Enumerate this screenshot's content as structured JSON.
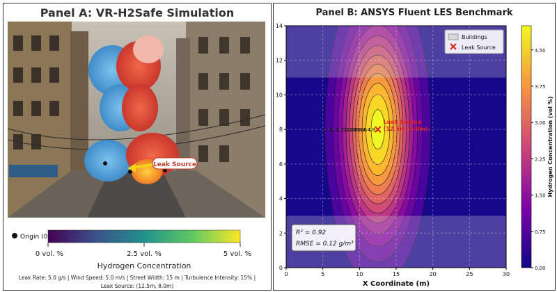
{
  "panel_a": {
    "title": "Panel A: VR-H2Safe Simulation",
    "leak_callout": "Leak Source",
    "legend_origin": "Origin (0",
    "colorbar": {
      "tick_labels": [
        "0 vol. %",
        "2.5 vol. %",
        "5 vol. %"
      ],
      "label": "Hydrogen Concentration",
      "colors": [
        "#440154",
        "#3b528b",
        "#21918c",
        "#5ec962",
        "#fde725"
      ]
    },
    "footer_line1": "Leak Rate: 5.0 g/s | Wind Speed: 5.0 m/s | Street Width: 15 m | Turbulence Intensity: 15% |",
    "footer_line2": "Leak Source: (12.5m, 8.0m)"
  },
  "chart_data": {
    "type": "heatmap",
    "title": "Panel B: ANSYS Fluent LES Benchmark",
    "xlabel": "X Coordinate (m)",
    "ylabel": "Y Coordinate (m)",
    "xlim": [
      0,
      30
    ],
    "ylim": [
      0,
      14
    ],
    "x_ticks": [
      "0",
      "5",
      "10",
      "15",
      "20",
      "25",
      "30"
    ],
    "y_ticks": [
      "0",
      "2",
      "4",
      "6",
      "8",
      "10",
      "12",
      "14"
    ],
    "colorbar": {
      "label": "Hydrogen Concentration (vol %)",
      "ticks": [
        "0.00",
        "0.75",
        "1.50",
        "2.25",
        "3.00",
        "3.75",
        "4.50"
      ],
      "range": [
        0,
        5
      ],
      "colormap": "plasma"
    },
    "plume": {
      "center_x": 12.5,
      "center_y": 8.0,
      "peak": 5.0,
      "sigma_x": 3.2,
      "sigma_y": 4.0
    },
    "contour_labels": [
      "4.8",
      "4.4",
      "4.0",
      "3.6",
      "3.2",
      "2.8",
      "2.4",
      "2.0",
      "1.6",
      "1.2",
      "0.8",
      "0.4"
    ],
    "buildings": [
      {
        "y0": 0,
        "y1": 3
      },
      {
        "y0": 11,
        "y1": 14
      }
    ],
    "leak_source": {
      "x": 12.5,
      "y": 8.0,
      "label": "Leak Source",
      "coord_label": "(12.5m, 8.0m)"
    },
    "legend": [
      {
        "label": "Buildings"
      },
      {
        "label": "Leak Source"
      }
    ],
    "legend_position": "top-right",
    "stats": {
      "r2": "0.92",
      "rmse": "0.12 g/m"
    },
    "grid": true
  }
}
